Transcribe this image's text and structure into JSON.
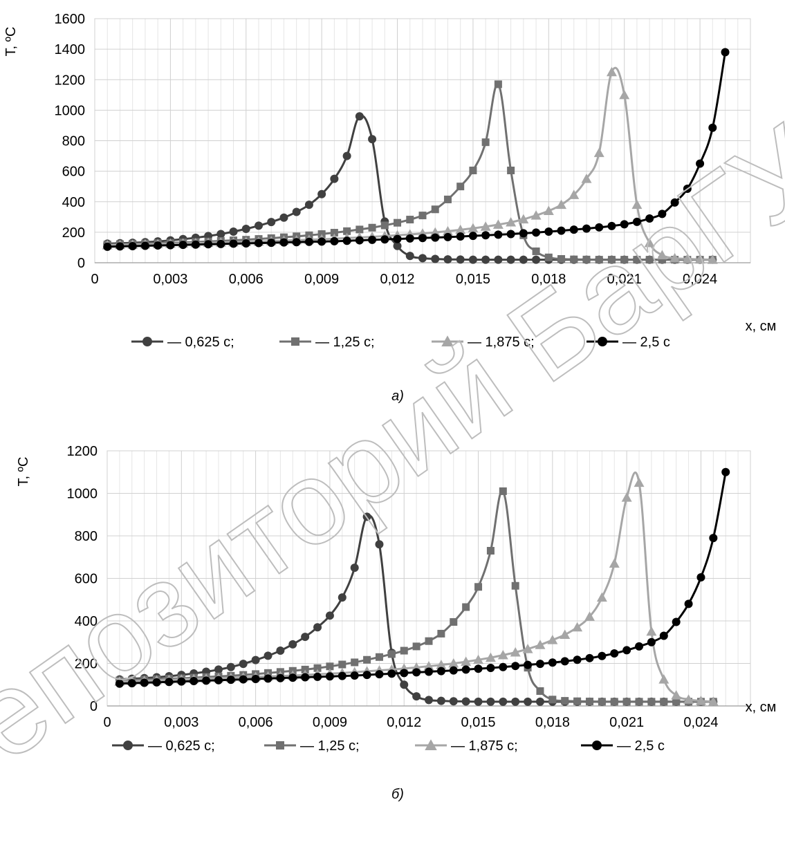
{
  "figure": {
    "watermark": "Репозиторий БарГУ"
  },
  "chart_data": [
    {
      "type": "line",
      "caption": "а)",
      "ylabel": "T, ºC",
      "xlabel": "x, см",
      "ylim": [
        0,
        1600
      ],
      "yticks": [
        0,
        200,
        400,
        600,
        800,
        1000,
        1200,
        1400,
        1600
      ],
      "xlim": [
        0,
        0.026
      ],
      "xticks": [
        0,
        0.003,
        0.006,
        0.009,
        0.012,
        0.015,
        0.018,
        0.021,
        0.024
      ],
      "xtick_labels": [
        "0",
        "0,003",
        "0,006",
        "0,009",
        "0,012",
        "0,015",
        "0,018",
        "0,021",
        "0,024"
      ],
      "grid": true,
      "legend_position": "bottom",
      "series": [
        {
          "name": "— 0,625 с;",
          "marker": "circle",
          "color": "#404040",
          "x": [
            0.0005,
            0.001,
            0.0015,
            0.002,
            0.0025,
            0.003,
            0.0035,
            0.004,
            0.0045,
            0.005,
            0.0055,
            0.006,
            0.0065,
            0.007,
            0.0075,
            0.008,
            0.0085,
            0.009,
            0.0095,
            0.01,
            0.0105,
            0.011,
            0.0115,
            0.012,
            0.0125,
            0.013,
            0.0135,
            0.014,
            0.0145,
            0.015,
            0.0155,
            0.016,
            0.0165,
            0.017,
            0.0175,
            0.018,
            0.0185,
            0.019,
            0.0195,
            0.02,
            0.0205,
            0.021,
            0.0215,
            0.022,
            0.0225,
            0.023,
            0.0235,
            0.024,
            0.0245
          ],
          "y": [
            125,
            128,
            131,
            135,
            140,
            147,
            155,
            164,
            175,
            188,
            204,
            222,
            243,
            267,
            296,
            333,
            380,
            450,
            550,
            700,
            960,
            810,
            270,
            110,
            45,
            30,
            25,
            22,
            21,
            20,
            20,
            20,
            20,
            20,
            20,
            20,
            20,
            20,
            20,
            20,
            20,
            20,
            20,
            20,
            20,
            20,
            20,
            20,
            20
          ]
        },
        {
          "name": "— 1,25 с;",
          "marker": "square",
          "color": "#707070",
          "x": [
            0.0005,
            0.001,
            0.0015,
            0.002,
            0.0025,
            0.003,
            0.0035,
            0.004,
            0.0045,
            0.005,
            0.0055,
            0.006,
            0.0065,
            0.007,
            0.0075,
            0.008,
            0.0085,
            0.009,
            0.0095,
            0.01,
            0.0105,
            0.011,
            0.0115,
            0.012,
            0.0125,
            0.013,
            0.0135,
            0.014,
            0.0145,
            0.015,
            0.0155,
            0.016,
            0.0165,
            0.017,
            0.0175,
            0.018,
            0.0185,
            0.019,
            0.0195,
            0.02,
            0.0205,
            0.021,
            0.0215,
            0.022,
            0.0225,
            0.023,
            0.0235,
            0.024,
            0.0245
          ],
          "y": [
            120,
            122,
            124,
            126,
            128,
            130,
            133,
            136,
            139,
            143,
            147,
            151,
            156,
            161,
            167,
            173,
            180,
            188,
            197,
            207,
            218,
            230,
            245,
            262,
            283,
            310,
            350,
            415,
            500,
            605,
            790,
            1170,
            605,
            180,
            75,
            35,
            25,
            22,
            21,
            20,
            20,
            20,
            20,
            20,
            20,
            20,
            20,
            20,
            20
          ]
        },
        {
          "name": "— 1,875 с;",
          "marker": "triangle",
          "color": "#a6a6a6",
          "x": [
            0.0005,
            0.001,
            0.0015,
            0.002,
            0.0025,
            0.003,
            0.0035,
            0.004,
            0.0045,
            0.005,
            0.0055,
            0.006,
            0.0065,
            0.007,
            0.0075,
            0.008,
            0.0085,
            0.009,
            0.0095,
            0.01,
            0.0105,
            0.011,
            0.0115,
            0.012,
            0.0125,
            0.013,
            0.0135,
            0.014,
            0.0145,
            0.015,
            0.0155,
            0.016,
            0.0165,
            0.017,
            0.0175,
            0.018,
            0.0185,
            0.019,
            0.0195,
            0.02,
            0.0205,
            0.021,
            0.0215,
            0.022,
            0.0225,
            0.023,
            0.0235,
            0.024,
            0.0245
          ],
          "y": [
            115,
            117,
            119,
            121,
            123,
            125,
            127,
            129,
            131,
            133,
            135,
            137,
            139,
            142,
            145,
            148,
            151,
            154,
            158,
            162,
            166,
            170,
            175,
            180,
            186,
            192,
            199,
            207,
            216,
            226,
            237,
            250,
            265,
            285,
            310,
            340,
            380,
            445,
            550,
            720,
            1250,
            1100,
            380,
            130,
            50,
            30,
            25,
            22,
            20
          ]
        },
        {
          "name": "— 2,5 с",
          "marker": "circle",
          "color": "#000000",
          "x": [
            0.0005,
            0.001,
            0.0015,
            0.002,
            0.0025,
            0.003,
            0.0035,
            0.004,
            0.0045,
            0.005,
            0.0055,
            0.006,
            0.0065,
            0.007,
            0.0075,
            0.008,
            0.0085,
            0.009,
            0.0095,
            0.01,
            0.0105,
            0.011,
            0.0115,
            0.012,
            0.0125,
            0.013,
            0.0135,
            0.014,
            0.0145,
            0.015,
            0.0155,
            0.016,
            0.0165,
            0.017,
            0.0175,
            0.018,
            0.0185,
            0.019,
            0.0195,
            0.02,
            0.0205,
            0.021,
            0.0215,
            0.022,
            0.0225,
            0.023,
            0.0235,
            0.024,
            0.0245,
            0.025
          ],
          "y": [
            105,
            107,
            109,
            111,
            113,
            115,
            117,
            119,
            121,
            123,
            125,
            127,
            129,
            131,
            133,
            135,
            137,
            139,
            141,
            144,
            147,
            150,
            153,
            156,
            159,
            162,
            165,
            168,
            172,
            176,
            180,
            184,
            188,
            193,
            198,
            204,
            210,
            217,
            224,
            232,
            241,
            252,
            268,
            290,
            320,
            395,
            485,
            650,
            885,
            1380
          ]
        }
      ]
    },
    {
      "type": "line",
      "caption": "б)",
      "ylabel": "T, ºC",
      "xlabel": "x, см",
      "ylim": [
        0,
        1200
      ],
      "yticks": [
        0,
        200,
        400,
        600,
        800,
        1000,
        1200
      ],
      "xlim": [
        0,
        0.026
      ],
      "xticks": [
        0,
        0.003,
        0.006,
        0.009,
        0.012,
        0.015,
        0.018,
        0.021,
        0.024
      ],
      "xtick_labels": [
        "0",
        "0,003",
        "0,006",
        "0,009",
        "0,012",
        "0,015",
        "0,018",
        "0,021",
        "0,024"
      ],
      "grid": true,
      "legend_position": "bottom",
      "series": [
        {
          "name": "— 0,625 с;",
          "marker": "circle",
          "color": "#404040",
          "x": [
            0.0005,
            0.001,
            0.0015,
            0.002,
            0.0025,
            0.003,
            0.0035,
            0.004,
            0.0045,
            0.005,
            0.0055,
            0.006,
            0.0065,
            0.007,
            0.0075,
            0.008,
            0.0085,
            0.009,
            0.0095,
            0.01,
            0.0105,
            0.011,
            0.0115,
            0.012,
            0.0125,
            0.013,
            0.0135,
            0.014,
            0.0145,
            0.015,
            0.0155,
            0.016,
            0.0165,
            0.017,
            0.0175,
            0.018,
            0.0185,
            0.019,
            0.0195,
            0.02,
            0.0205,
            0.021,
            0.0215,
            0.022,
            0.0225,
            0.023,
            0.0235,
            0.024,
            0.0245
          ],
          "y": [
            125,
            128,
            131,
            135,
            140,
            146,
            153,
            161,
            171,
            183,
            198,
            216,
            236,
            260,
            290,
            325,
            370,
            425,
            510,
            650,
            890,
            760,
            250,
            100,
            45,
            28,
            24,
            22,
            21,
            20,
            20,
            20,
            20,
            20,
            20,
            20,
            20,
            20,
            20,
            20,
            20,
            20,
            20,
            20,
            20,
            20,
            20,
            20,
            20
          ]
        },
        {
          "name": "— 1,25 с;",
          "marker": "square",
          "color": "#707070",
          "x": [
            0.0005,
            0.001,
            0.0015,
            0.002,
            0.0025,
            0.003,
            0.0035,
            0.004,
            0.0045,
            0.005,
            0.0055,
            0.006,
            0.0065,
            0.007,
            0.0075,
            0.008,
            0.0085,
            0.009,
            0.0095,
            0.01,
            0.0105,
            0.011,
            0.0115,
            0.012,
            0.0125,
            0.013,
            0.0135,
            0.014,
            0.0145,
            0.015,
            0.0155,
            0.016,
            0.0165,
            0.017,
            0.0175,
            0.018,
            0.0185,
            0.019,
            0.0195,
            0.02,
            0.0205,
            0.021,
            0.0215,
            0.022,
            0.0225,
            0.023,
            0.0235,
            0.024,
            0.0245
          ],
          "y": [
            120,
            122,
            124,
            126,
            128,
            130,
            133,
            136,
            139,
            142,
            146,
            150,
            155,
            160,
            165,
            171,
            178,
            186,
            195,
            205,
            217,
            230,
            244,
            260,
            280,
            305,
            340,
            395,
            465,
            560,
            730,
            1010,
            565,
            180,
            70,
            30,
            24,
            22,
            21,
            20,
            20,
            20,
            20,
            20,
            20,
            20,
            20,
            20,
            20
          ]
        },
        {
          "name": "— 1,875 с;",
          "marker": "triangle",
          "color": "#a6a6a6",
          "x": [
            0.0005,
            0.001,
            0.0015,
            0.002,
            0.0025,
            0.003,
            0.0035,
            0.004,
            0.0045,
            0.005,
            0.0055,
            0.006,
            0.0065,
            0.007,
            0.0075,
            0.008,
            0.0085,
            0.009,
            0.0095,
            0.01,
            0.0105,
            0.011,
            0.0115,
            0.012,
            0.0125,
            0.013,
            0.0135,
            0.014,
            0.0145,
            0.015,
            0.0155,
            0.016,
            0.0165,
            0.017,
            0.0175,
            0.018,
            0.0185,
            0.019,
            0.0195,
            0.02,
            0.0205,
            0.021,
            0.0215,
            0.022,
            0.0225,
            0.023,
            0.0235,
            0.024,
            0.0245
          ],
          "y": [
            115,
            117,
            119,
            121,
            123,
            125,
            127,
            129,
            131,
            133,
            135,
            137,
            139,
            141,
            143,
            146,
            149,
            152,
            155,
            159,
            163,
            167,
            171,
            176,
            181,
            187,
            193,
            200,
            208,
            217,
            227,
            239,
            252,
            268,
            287,
            310,
            335,
            370,
            420,
            510,
            670,
            980,
            1050,
            350,
            125,
            50,
            30,
            24,
            20
          ]
        },
        {
          "name": "— 2,5 с",
          "marker": "circle",
          "color": "#000000",
          "x": [
            0.0005,
            0.001,
            0.0015,
            0.002,
            0.0025,
            0.003,
            0.0035,
            0.004,
            0.0045,
            0.005,
            0.0055,
            0.006,
            0.0065,
            0.007,
            0.0075,
            0.008,
            0.0085,
            0.009,
            0.0095,
            0.01,
            0.0105,
            0.011,
            0.0115,
            0.012,
            0.0125,
            0.013,
            0.0135,
            0.014,
            0.0145,
            0.015,
            0.0155,
            0.016,
            0.0165,
            0.017,
            0.0175,
            0.018,
            0.0185,
            0.019,
            0.0195,
            0.02,
            0.0205,
            0.021,
            0.0215,
            0.022,
            0.0225,
            0.023,
            0.0235,
            0.024,
            0.0245,
            0.025
          ],
          "y": [
            105,
            107,
            109,
            111,
            113,
            115,
            117,
            119,
            121,
            123,
            125,
            127,
            129,
            131,
            133,
            135,
            137,
            139,
            141,
            143,
            146,
            149,
            152,
            155,
            158,
            161,
            164,
            167,
            171,
            175,
            179,
            183,
            188,
            193,
            198,
            204,
            210,
            217,
            225,
            235,
            247,
            262,
            280,
            300,
            330,
            395,
            480,
            605,
            790,
            1100
          ]
        }
      ]
    }
  ]
}
